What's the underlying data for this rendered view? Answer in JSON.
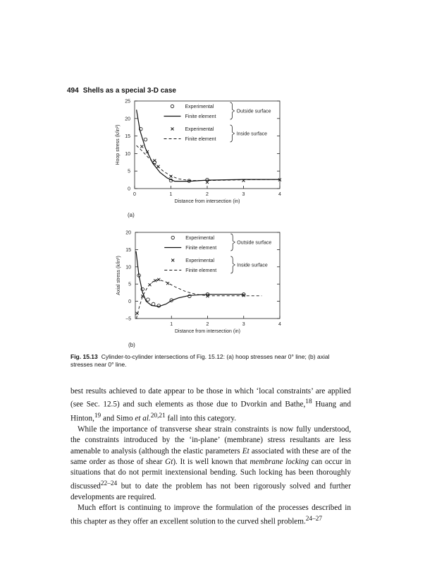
{
  "header": {
    "page_number": "494",
    "running_title": "Shells as a special 3-D case"
  },
  "chart_data": [
    {
      "type": "line",
      "panel_label": "(a)",
      "xlabel": "Distance from intersection (in)",
      "ylabel": "Hoop stress (k/in²)",
      "xlim": [
        0,
        4
      ],
      "ylim": [
        0,
        25
      ],
      "xticks": [
        "0",
        "1",
        "2",
        "3",
        "4"
      ],
      "yticks": [
        "0",
        "5",
        "10",
        "15",
        "20",
        "25"
      ],
      "grid": false,
      "legend": {
        "placement": "top-right",
        "groups": [
          {
            "label": "Outside surface",
            "entries": [
              "Experimental",
              "Finite element"
            ]
          },
          {
            "label": "Inside surface",
            "entries": [
              "Experimental",
              "Finite element"
            ]
          }
        ]
      },
      "series": [
        {
          "name": "Experimental",
          "group": "Outside surface",
          "marker": "circle",
          "x": [
            0.17,
            0.3,
            0.55,
            1.0,
            1.5,
            2.0
          ],
          "y": [
            17,
            14,
            7.5,
            2.3,
            2.2,
            2.5
          ]
        },
        {
          "name": "Finite element",
          "group": "Outside surface",
          "style": "solid",
          "x": [
            0.05,
            0.15,
            0.3,
            0.5,
            0.7,
            0.9,
            1.1,
            1.5,
            2,
            3,
            4
          ],
          "y": [
            22.5,
            16.5,
            11.5,
            7.2,
            4.6,
            3,
            2.1,
            2.1,
            2.4,
            2.6,
            2.6
          ]
        },
        {
          "name": "Experimental",
          "group": "Inside surface",
          "marker": "cross",
          "x": [
            0.2,
            0.35,
            0.55,
            0.65,
            1.0,
            2.0,
            3.0,
            4.0
          ],
          "y": [
            12,
            10.5,
            8,
            6.3,
            3.5,
            1.8,
            2.3,
            2.5
          ]
        },
        {
          "name": "Finite element",
          "group": "Inside surface",
          "style": "dashed",
          "x": [
            0.05,
            0.2,
            0.4,
            0.6,
            0.8,
            1.0,
            1.2,
            1.5,
            2,
            3,
            4
          ],
          "y": [
            12.3,
            10.8,
            8.6,
            6.6,
            4.9,
            3.6,
            2.8,
            2.3,
            2.3,
            2.5,
            2.6
          ]
        }
      ]
    },
    {
      "type": "line",
      "panel_label": "(b)",
      "xlabel": "Distance from intersection (in)",
      "ylabel": "Axial stress (k/in²)",
      "xlim": [
        0,
        4
      ],
      "ylim": [
        -5,
        20
      ],
      "xticks": [
        "1",
        "2",
        "3",
        "4"
      ],
      "yticks": [
        "-5",
        "0",
        "5",
        "10",
        "15",
        "20"
      ],
      "grid": false,
      "legend": {
        "placement": "top-right",
        "groups": [
          {
            "label": "Outside surface",
            "entries": [
              "Experimental",
              "Finite element"
            ]
          },
          {
            "label": "Inside surface",
            "entries": [
              "Experimental",
              "Finite element"
            ]
          }
        ]
      },
      "series": [
        {
          "name": "Experimental",
          "group": "Outside surface",
          "marker": "circle",
          "x": [
            0.1,
            0.2,
            0.35,
            0.5,
            0.65,
            1.0,
            1.5,
            2.0,
            3.0
          ],
          "y": [
            7.5,
            3.5,
            0.5,
            -0.8,
            -1.3,
            0.3,
            1.5,
            2.0,
            2.0
          ]
        },
        {
          "name": "Finite element",
          "group": "Outside surface",
          "style": "solid",
          "x": [
            0.02,
            0.1,
            0.2,
            0.3,
            0.45,
            0.65,
            0.85,
            1.0,
            1.2,
            1.5,
            2,
            3
          ],
          "y": [
            14.5,
            7.5,
            2.5,
            0,
            -1.2,
            -1.5,
            -0.8,
            0.2,
            1.0,
            1.7,
            2.0,
            2.0
          ]
        },
        {
          "name": "Experimental",
          "group": "Inside surface",
          "marker": "cross",
          "x": [
            0.05,
            0.2,
            0.4,
            0.55,
            0.65,
            0.9,
            2.0,
            3.0
          ],
          "y": [
            -3.5,
            1.5,
            4.8,
            6.0,
            6.3,
            5.2,
            1.5,
            1.7
          ]
        },
        {
          "name": "Finite element",
          "group": "Inside surface",
          "style": "dashed",
          "x": [
            0.03,
            0.1,
            0.2,
            0.35,
            0.5,
            0.65,
            0.85,
            1.1,
            1.4,
            1.7,
            2,
            3,
            3.5
          ],
          "y": [
            -5,
            -2,
            1.5,
            4.3,
            5.8,
            6.3,
            5.6,
            4.2,
            2.8,
            2.0,
            1.6,
            1.6,
            1.6
          ]
        }
      ]
    }
  ],
  "caption": {
    "label": "Fig. 15.13",
    "text": "Cylinder-to-cylinder intersections of Fig. 15.12: (a) hoop stresses near 0° line; (b) axial stresses near 0° line."
  },
  "body": {
    "p1a": "best results achieved to date appear to be those in which ‘local constraints’ are applied (see Sec. 12.5) and such elements as those due to Dvorkin and Bathe,",
    "p1s1": "18",
    "p1b": " Huang and Hinton,",
    "p1s2": "19",
    "p1c": " and Simo ",
    "p1i": "et al.",
    "p1s3": "20,21",
    "p1d": " fall into this category.",
    "p2a": "While the importance of transverse shear strain constraints is now fully understood, the constraints introduced by the ‘in-plane’ (membrane) stress resultants are less amenable to analysis (although the elastic parameters ",
    "p2i1": "Et",
    "p2b": " associated with these are of the same order as those of shear ",
    "p2i2": "Gt",
    "p2c": "). It is well known that ",
    "p2i3": "membrane locking",
    "p2d": " can occur in situations that do not permit inextensional bending. Such locking has been thoroughly discussed",
    "p2s1": "22–24",
    "p2e": " but to date the problem has not been rigorously solved and further developments are required.",
    "p3a": "Much effort is continuing to improve the formulation of the processes described in this chapter as they offer an excellent solution to the curved shell problem.",
    "p3s1": "24–27"
  }
}
